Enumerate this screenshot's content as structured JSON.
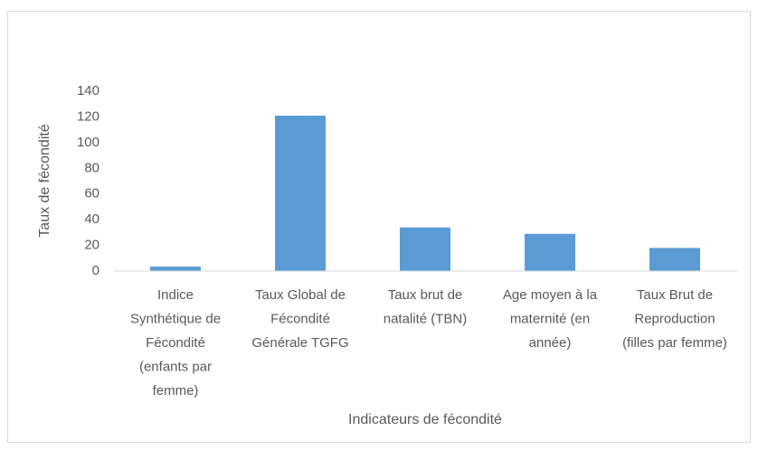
{
  "chart_data": {
    "type": "bar",
    "categories": [
      "Indice Synthétique de Fécondité (enfants par femme)",
      "Taux Global de Fécondité Générale TGFG",
      "Taux brut de natalité (TBN)",
      "Age moyen à la maternité (en année)",
      "Taux Brut de Reproduction (filles par femme)"
    ],
    "values": [
      3.5,
      121,
      34,
      29,
      18
    ],
    "color": "#5b9bd5",
    "x_label": "Indicateurs de fécondité",
    "y_label": "Taux de fécondité",
    "ylim": [
      0,
      140
    ],
    "yticks": [
      0,
      20,
      40,
      60,
      80,
      100,
      120,
      140
    ],
    "grid": false
  }
}
